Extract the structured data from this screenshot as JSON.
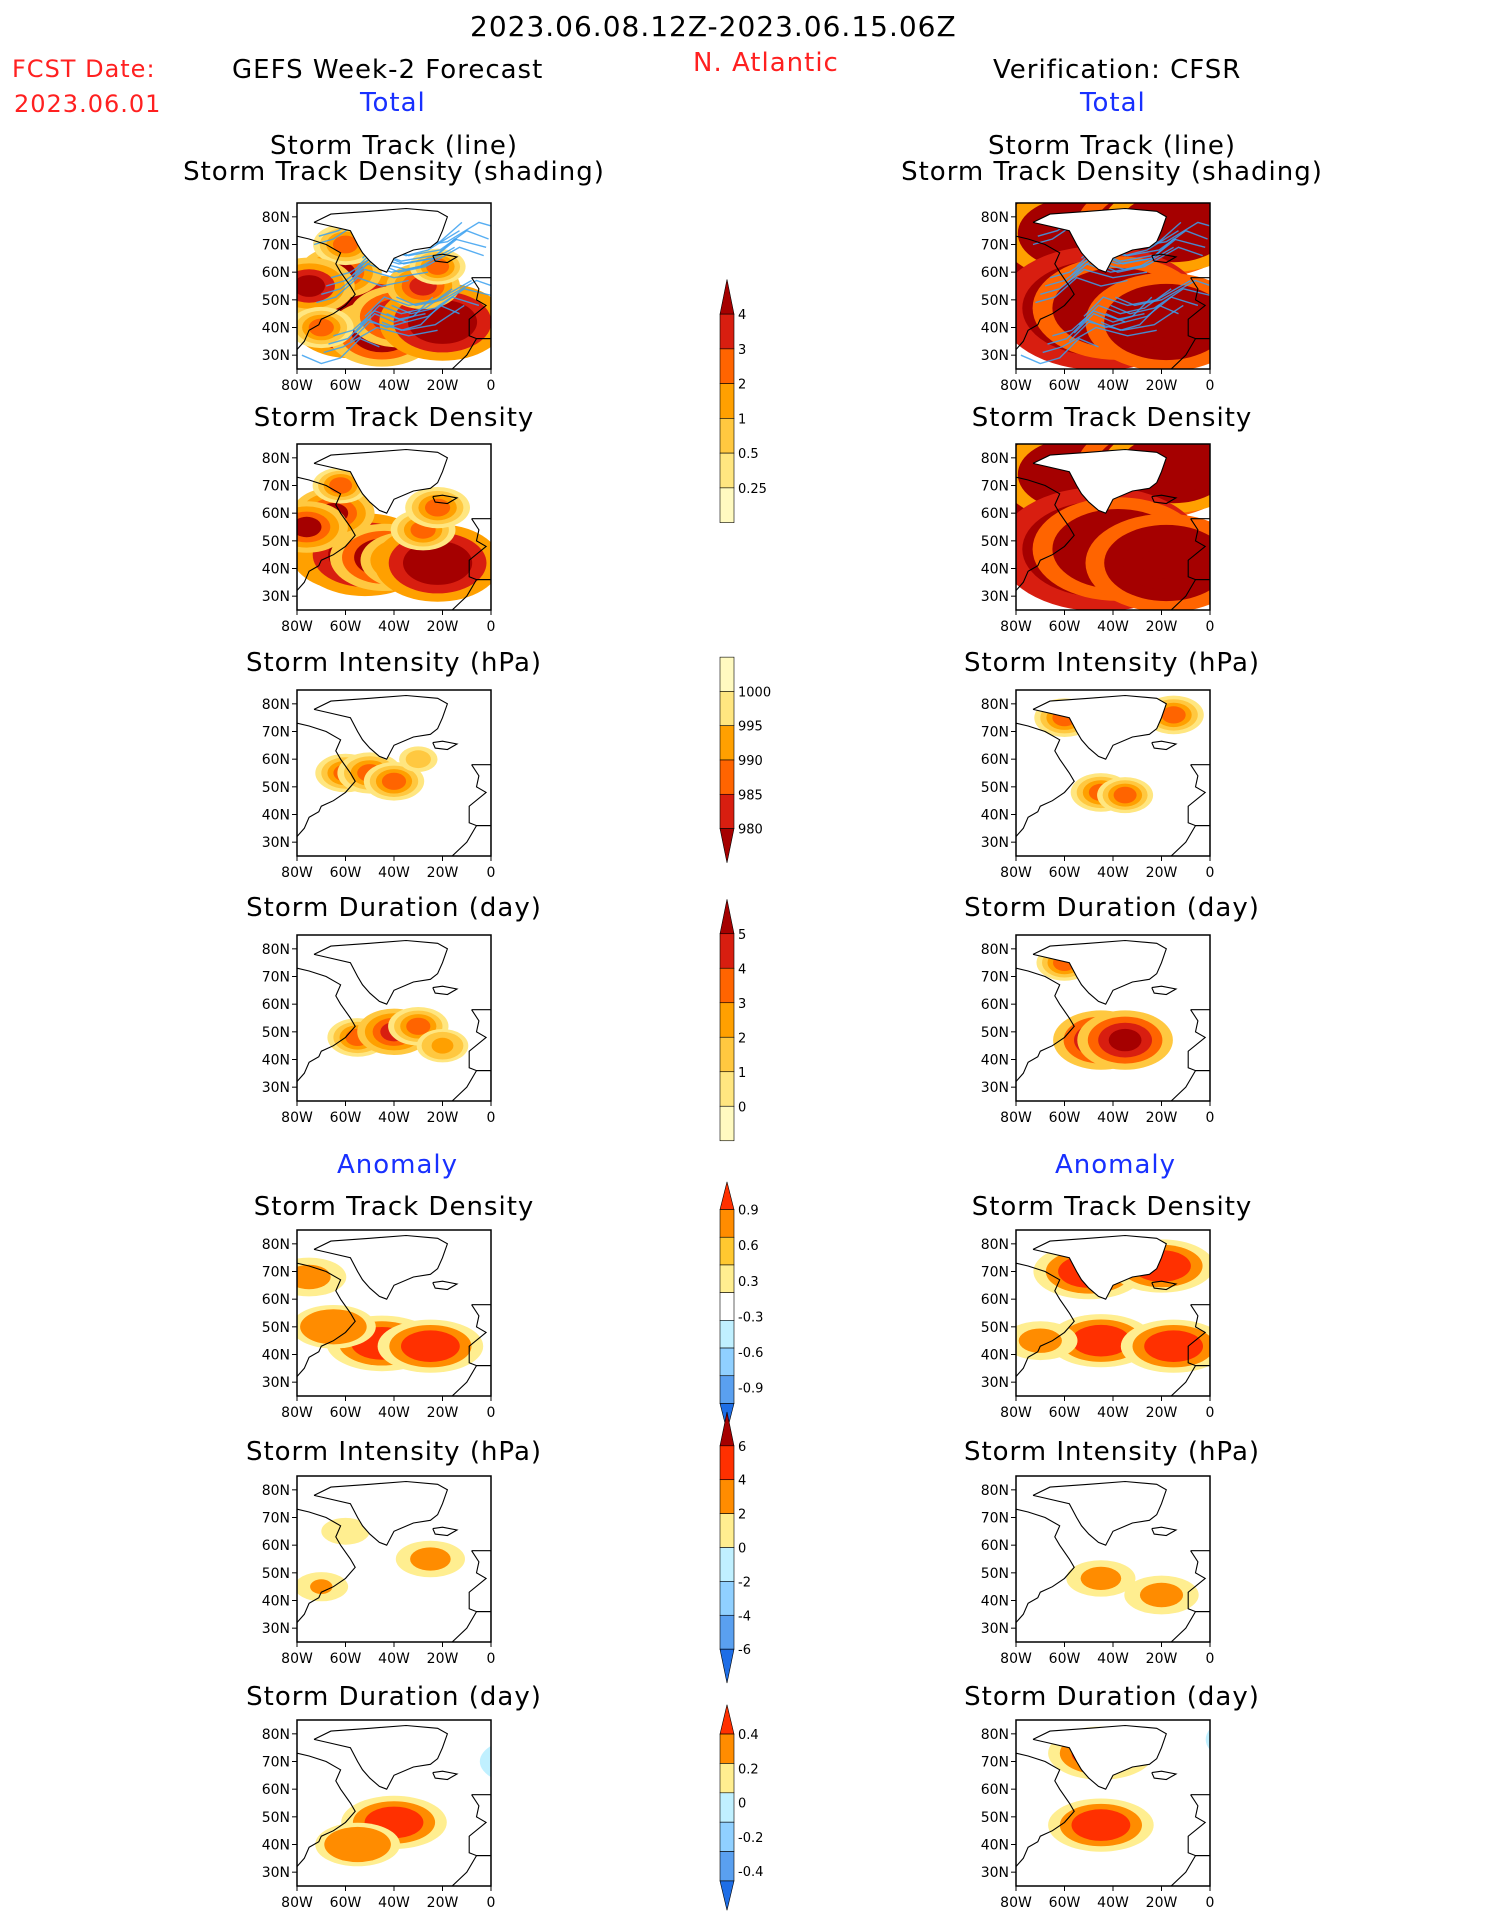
{
  "header": {
    "date_range": "2023.06.08.12Z-2023.06.15.06Z",
    "fcst_label": "FCST Date:",
    "fcst_date": "2023.06.01",
    "left_title": "GEFS Week-2 Forecast",
    "region": "N. Atlantic",
    "right_title": "Verification: CFSR"
  },
  "sections": {
    "total": "Total",
    "anomaly": "Anomaly"
  },
  "panel_titles": {
    "track_line": "Storm Track (line)",
    "track_density_shading": "Storm Track Density (shading)",
    "track_density": "Storm Track Density",
    "intensity": "Storm Intensity (hPa)",
    "duration": "Storm Duration (day)"
  },
  "axes": {
    "lat_labels": [
      "80N",
      "70N",
      "60N",
      "50N",
      "40N",
      "30N"
    ],
    "lon_labels": [
      "80W",
      "60W",
      "40W",
      "20W",
      "0"
    ]
  },
  "colorbars": [
    {
      "id": "density",
      "labels": [
        "4",
        "3",
        "2",
        "1",
        "0.5",
        "0.25"
      ],
      "colors": [
        "#a50000",
        "#d81e10",
        "#ff6400",
        "#ffa000",
        "#ffc840",
        "#ffe680",
        "#fffac0"
      ],
      "bottom": "open"
    },
    {
      "id": "intensity",
      "labels": [
        "1000",
        "995",
        "990",
        "985",
        "980"
      ],
      "colors": [
        "#fffac0",
        "#ffe680",
        "#ffa000",
        "#ff6400",
        "#d81e10",
        "#a50000"
      ],
      "top": "open"
    },
    {
      "id": "duration",
      "labels": [
        "5",
        "4",
        "3",
        "2",
        "1",
        "0"
      ],
      "colors": [
        "#a50000",
        "#d81e10",
        "#ff6400",
        "#ffa000",
        "#ffc840",
        "#ffe680",
        "#fffac0"
      ],
      "bottom": "open"
    },
    {
      "id": "density_anom",
      "labels": [
        "0.9",
        "0.6",
        "0.3",
        "-0.3",
        "-0.6",
        "-0.9"
      ],
      "colors": [
        "#ff3000",
        "#ff8c00",
        "#ffc830",
        "#ffee90",
        "#ffffff",
        "#c0f0ff",
        "#90d0ff",
        "#5aa0f0",
        "#1e6ee6"
      ]
    },
    {
      "id": "intensity_anom",
      "labels": [
        "6",
        "4",
        "2",
        "0",
        "-2",
        "-4",
        "-6"
      ],
      "colors": [
        "#a50000",
        "#ff3000",
        "#ff8c00",
        "#ffee90",
        "#c0f0ff",
        "#90d0ff",
        "#5aa0f0",
        "#1e6ee6"
      ]
    },
    {
      "id": "duration_anom",
      "labels": [
        "0.4",
        "0.2",
        "0",
        "-0.2",
        "-0.4"
      ],
      "colors": [
        "#ff3000",
        "#ff8c00",
        "#ffee90",
        "#c0f0ff",
        "#90d0ff",
        "#5aa0f0",
        "#1e6ee6"
      ]
    }
  ],
  "fields": {
    "fcst_track": [
      [
        58,
        42,
        1.2
      ],
      [
        50,
        45,
        1.3
      ],
      [
        45,
        38,
        1.1
      ],
      [
        38,
        44,
        1
      ],
      [
        25,
        42,
        0.9
      ],
      [
        20,
        42,
        1.3
      ],
      [
        28,
        55,
        0.7
      ],
      [
        22,
        62,
        0.5
      ],
      [
        62,
        60,
        0.8
      ],
      [
        60,
        70,
        0.6
      ],
      [
        75,
        55,
        0.9
      ],
      [
        70,
        40,
        0.6
      ]
    ],
    "fcst_density": [
      [
        58,
        45,
        1.2
      ],
      [
        52,
        45,
        1.4
      ],
      [
        44,
        44,
        1.1
      ],
      [
        35,
        43,
        0.9
      ],
      [
        22,
        42,
        1.3
      ],
      [
        28,
        54,
        0.6
      ],
      [
        22,
        62,
        0.6
      ],
      [
        65,
        60,
        0.8
      ],
      [
        62,
        70,
        0.5
      ],
      [
        76,
        55,
        0.8
      ]
    ],
    "obs_density": [
      [
        65,
        72,
        2.2
      ],
      [
        55,
        74,
        1.6
      ],
      [
        22,
        76,
        1.7
      ],
      [
        15,
        76,
        1.5
      ],
      [
        45,
        47,
        2.2
      ],
      [
        38,
        47,
        1.8
      ],
      [
        18,
        42,
        1.7
      ]
    ],
    "fcst_intensity": [
      [
        60,
        55,
        0.55
      ],
      [
        50,
        55,
        0.6
      ],
      [
        40,
        52,
        0.55
      ],
      [
        30,
        60,
        0.3
      ]
    ],
    "obs_intensity": [
      [
        60,
        75,
        0.55
      ],
      [
        45,
        76,
        0.5
      ],
      [
        15,
        76,
        0.55
      ],
      [
        45,
        48,
        0.55
      ],
      [
        35,
        47,
        0.5
      ]
    ],
    "fcst_duration": [
      [
        55,
        48,
        0.55
      ],
      [
        40,
        50,
        0.7
      ],
      [
        30,
        52,
        0.55
      ],
      [
        20,
        45,
        0.45
      ]
    ],
    "obs_duration": [
      [
        60,
        75,
        0.5
      ],
      [
        45,
        76,
        0.45
      ],
      [
        45,
        47,
        0.95
      ],
      [
        35,
        47,
        0.95
      ]
    ],
    "fcst_density_anom": [
      [
        -35,
        58,
        -1
      ],
      [
        45,
        44,
        0.95
      ],
      [
        25,
        43,
        0.9
      ],
      [
        65,
        50,
        0.7
      ],
      [
        75,
        68,
        0.6
      ]
    ],
    "obs_density_anom": [
      [
        -45,
        57,
        -1
      ],
      [
        50,
        70,
        0.95
      ],
      [
        20,
        72,
        0.9
      ],
      [
        45,
        45,
        0.9
      ],
      [
        15,
        43,
        0.9
      ],
      [
        70,
        45,
        0.6
      ]
    ],
    "fcst_intensity_anom": [
      [
        -45,
        48,
        -0.4
      ],
      [
        60,
        65,
        0.35
      ],
      [
        25,
        55,
        0.55
      ],
      [
        70,
        45,
        0.4
      ]
    ],
    "obs_intensity_anom": [
      [
        -60,
        72,
        -0.35
      ],
      [
        -20,
        76,
        -0.5
      ],
      [
        30,
        76,
        0.3
      ],
      [
        45,
        48,
        0.55
      ],
      [
        -35,
        48,
        -0.35
      ],
      [
        20,
        42,
        0.6
      ]
    ],
    "fcst_duration_anom": [
      [
        40,
        48,
        0.9
      ],
      [
        -25,
        45,
        -0.7
      ],
      [
        -15,
        70,
        -0.8
      ],
      [
        -60,
        70,
        -0.6
      ],
      [
        55,
        40,
        0.7
      ]
    ],
    "obs_duration_anom": [
      [
        45,
        73,
        0.9
      ],
      [
        -65,
        75,
        -0.8
      ],
      [
        -20,
        78,
        -0.9
      ],
      [
        45,
        47,
        0.9
      ],
      [
        -70,
        45,
        -0.8
      ],
      [
        -20,
        42,
        -0.8
      ]
    ]
  }
}
